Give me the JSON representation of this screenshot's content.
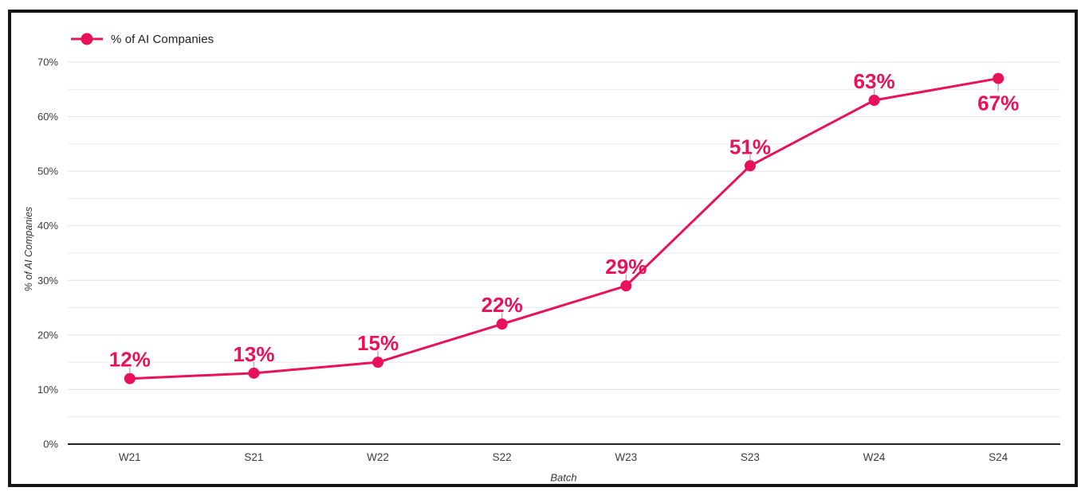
{
  "chart_data": {
    "type": "line",
    "title": "",
    "categories": [
      "W21",
      "S21",
      "W22",
      "S22",
      "W23",
      "S23",
      "W24",
      "S24"
    ],
    "series": [
      {
        "name": "% of AI Companies",
        "values": [
          12,
          13,
          15,
          22,
          29,
          51,
          63,
          67
        ],
        "point_labels": [
          "12%",
          "13%",
          "15%",
          "22%",
          "29%",
          "51%",
          "63%",
          "67%"
        ],
        "label_positions": [
          "above",
          "above",
          "above",
          "above",
          "above",
          "above",
          "above",
          "below"
        ]
      }
    ],
    "xlabel": "Batch",
    "ylabel": "% of AI Companies",
    "ylim": [
      0,
      70
    ],
    "y_major_tick_labels": [
      "0%",
      "10%",
      "20%",
      "30%",
      "40%",
      "50%",
      "60%",
      "70%"
    ],
    "y_major_step": 10,
    "y_minor_step": 5,
    "grid": true,
    "legend_position": "top-left"
  },
  "legend": {
    "items": [
      {
        "label": "% of AI Companies",
        "color": "#E8115A"
      }
    ]
  },
  "colors": {
    "series": "#E8115A",
    "grid_major": "#e0e0e0",
    "grid_minor": "#eaeaea",
    "axis_line": "#212121",
    "tick_text": "#3c3c3c",
    "label_connector": "#b3b3b3",
    "frame_border": "#151515",
    "background": "#ffffff"
  }
}
